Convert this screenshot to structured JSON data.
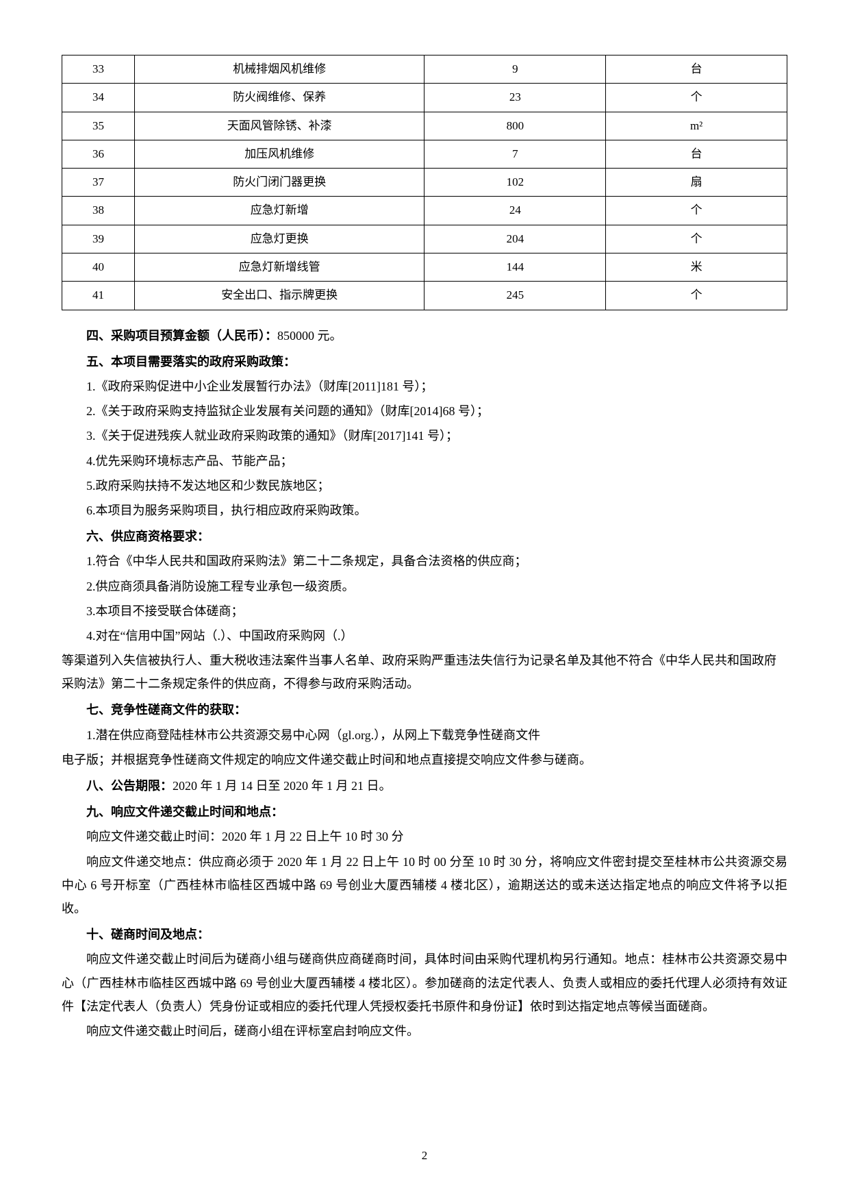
{
  "table": {
    "rows": [
      {
        "num": "33",
        "item": "机械排烟风机维修",
        "qty": "9",
        "unit": "台"
      },
      {
        "num": "34",
        "item": "防火阀维修、保养",
        "qty": "23",
        "unit": "个"
      },
      {
        "num": "35",
        "item": "天面风管除锈、补漆",
        "qty": "800",
        "unit": "m²"
      },
      {
        "num": "36",
        "item": "加压风机维修",
        "qty": "7",
        "unit": "台"
      },
      {
        "num": "37",
        "item": "防火门闭门器更换",
        "qty": "102",
        "unit": "扇"
      },
      {
        "num": "38",
        "item": "应急灯新增",
        "qty": "24",
        "unit": "个"
      },
      {
        "num": "39",
        "item": "应急灯更换",
        "qty": "204",
        "unit": "个"
      },
      {
        "num": "40",
        "item": "应急灯新增线管",
        "qty": "144",
        "unit": "米"
      },
      {
        "num": "41",
        "item": "安全出口、指示牌更换",
        "qty": "245",
        "unit": "个"
      }
    ]
  },
  "section4": {
    "heading": "四、采购项目预算金额（人民币）：",
    "text": "850000 元。"
  },
  "section5": {
    "heading": "五、本项目需要落实的政府采购政策：",
    "items": [
      "1.《政府采购促进中小企业发展暂行办法》（财库[2011]181 号）；",
      "2.《关于政府采购支持监狱企业发展有关问题的通知》（财库[2014]68 号）；",
      "3.《关于促进残疾人就业政府采购政策的通知》（财库[2017]141 号）；",
      "4.优先采购环境标志产品、节能产品；",
      "5.政府采购扶持不发达地区和少数民族地区；",
      "6.本项目为服务采购项目，执行相应政府采购政策。"
    ]
  },
  "section6": {
    "heading": "六、供应商资格要求：",
    "items": [
      "1.符合《中华人民共和国政府采购法》第二十二条规定，具备合法资格的供应商；",
      "2.供应商须具备消防设施工程专业承包一级资质。",
      "3.本项目不接受联合体磋商；",
      "4.对在“信用中国”网站（.）、中国政府采购网（.）"
    ],
    "continuation": "等渠道列入失信被执行人、重大税收违法案件当事人名单、政府采购严重违法失信行为记录名单及其他不符合《中华人民共和国政府采购法》第二十二条规定条件的供应商，不得参与政府采购活动。"
  },
  "section7": {
    "heading": "七、竞争性磋商文件的获取：",
    "para1": "1.潜在供应商登陆桂林市公共资源交易中心网（gl.org.），从网上下载竞争性磋商文件",
    "para2": "电子版；并根据竞争性磋商文件规定的响应文件递交截止时间和地点直接提交响应文件参与磋商。"
  },
  "section8": {
    "heading": "八、公告期限：",
    "text": "2020 年 1 月 14 日至 2020 年 1 月 21 日。"
  },
  "section9": {
    "heading": "九、响应文件递交截止时间和地点：",
    "para1": "响应文件递交截止时间：2020 年 1 月 22 日上午 10 时 30 分",
    "para2": "响应文件递交地点：供应商必须于 2020 年 1 月 22 日上午 10 时 00 分至 10 时 30 分，将响应文件密封提交至桂林市公共资源交易中心 6 号开标室（广西桂林市临桂区西城中路 69 号创业大厦西辅楼 4 楼北区），逾期送达的或未送达指定地点的响应文件将予以拒收。"
  },
  "section10": {
    "heading": "十、磋商时间及地点：",
    "para1": "响应文件递交截止时间后为磋商小组与磋商供应商磋商时间，具体时间由采购代理机构另行通知。地点：桂林市公共资源交易中心（广西桂林市临桂区西城中路 69 号创业大厦西辅楼 4 楼北区）。参加磋商的法定代表人、负责人或相应的委托代理人必须持有效证件【法定代表人（负责人）凭身份证或相应的委托代理人凭授权委托书原件和身份证】依时到达指定地点等候当面磋商。",
    "para2": "响应文件递交截止时间后，磋商小组在评标室启封响应文件。"
  },
  "pageNum": "2"
}
